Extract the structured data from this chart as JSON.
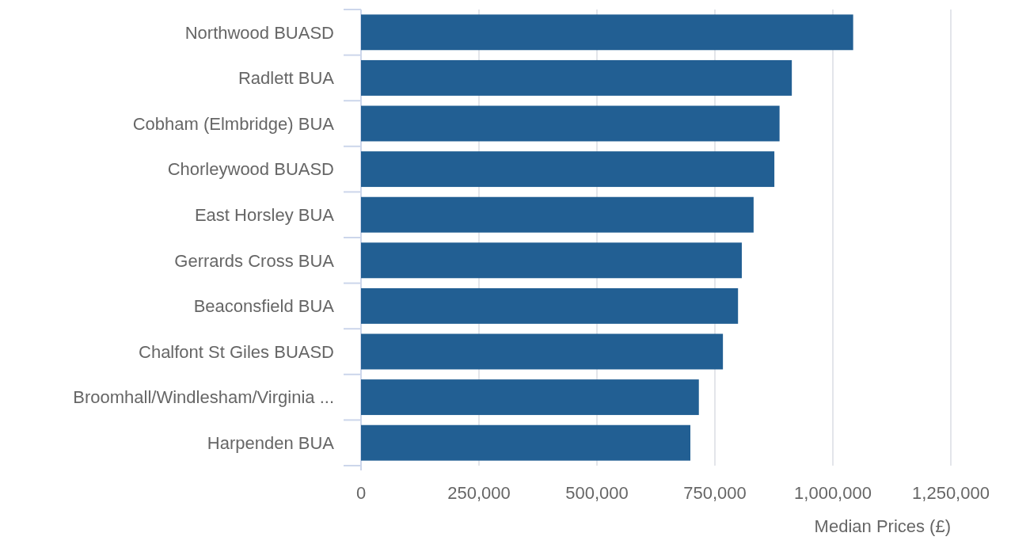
{
  "chart_data": {
    "type": "bar",
    "orientation": "horizontal",
    "xlabel": "Median Prices (£)",
    "categories": [
      "Northwood BUASD",
      "Radlett BUA",
      "Cobham (Elmbridge) BUA",
      "Chorleywood BUASD",
      "East Horsley BUA",
      "Gerrards Cross BUA",
      "Beaconsfield BUA",
      "Chalfont St Giles BUASD",
      "Broomhall/Windlesham/Virginia ...",
      "Harpenden BUA"
    ],
    "values": [
      1043000,
      913000,
      887000,
      876000,
      832000,
      807000,
      799000,
      767000,
      716000,
      698000
    ],
    "color": "#225f93",
    "xlim": [
      0,
      1250000
    ],
    "xticks": [
      {
        "value": 0,
        "label": "0"
      },
      {
        "value": 250000,
        "label": "250,000"
      },
      {
        "value": 500000,
        "label": "500,000"
      },
      {
        "value": 750000,
        "label": "750,000"
      },
      {
        "value": 1000000,
        "label": "1,000,000"
      },
      {
        "value": 1250000,
        "label": "1,250,000"
      }
    ],
    "grid": "x"
  }
}
